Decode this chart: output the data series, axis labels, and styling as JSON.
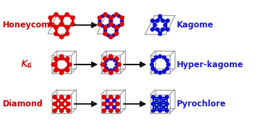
{
  "rows": [
    {
      "left_label": "Honeycomb",
      "right_label": "Kagome",
      "lc": "#cc0000",
      "rc": "#1a1acc"
    },
    {
      "left_label": "$\\mathit{K}_4$",
      "right_label": "Hyper-kagome",
      "lc": "#cc0000",
      "rc": "#1a1acc"
    },
    {
      "left_label": "Diamond",
      "right_label": "Pyrochlore",
      "lc": "#cc0000",
      "rc": "#1a1acc"
    }
  ],
  "red": "#dd0000",
  "blue": "#1111cc",
  "teal": "#44ccaa",
  "gray": "#999999",
  "black": "#111111",
  "white": "#ffffff",
  "figsize": [
    3.78,
    1.88
  ],
  "dpi": 100
}
